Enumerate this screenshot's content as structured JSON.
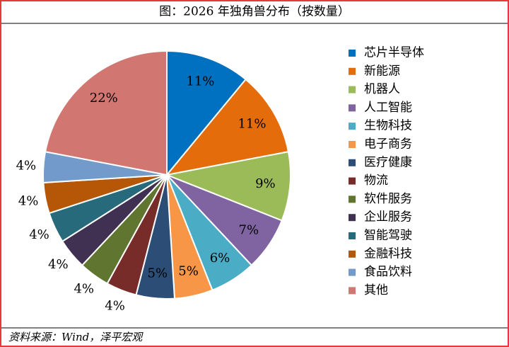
{
  "chart_data": {
    "type": "pie",
    "title": "图：2026 年独角兽分布（按数量）",
    "categories": [
      "芯片半导体",
      "新能源",
      "机器人",
      "人工智能",
      "生物科技",
      "电子商务",
      "医疗健康",
      "物流",
      "软件服务",
      "企业服务",
      "智能驾驶",
      "金融科技",
      "食品饮料",
      "其他"
    ],
    "values": [
      11,
      11,
      9,
      7,
      6,
      5,
      5,
      4,
      4,
      4,
      4,
      4,
      4,
      22
    ],
    "value_labels": [
      "11%",
      "11%",
      "9%",
      "7%",
      "6%",
      "5%",
      "5%",
      "4%",
      "4%",
      "4%",
      "4%",
      "4%",
      "4%",
      "22%"
    ],
    "colors": [
      "#0070c0",
      "#e46c0a",
      "#9bbb59",
      "#8064a2",
      "#4bacc6",
      "#f79646",
      "#2c4d75",
      "#772c2a",
      "#5f7530",
      "#403152",
      "#276a7c",
      "#b65708",
      "#729aca",
      "#d27671"
    ],
    "legend": "right",
    "source": "资料来源：Wind，泽平宏观"
  }
}
